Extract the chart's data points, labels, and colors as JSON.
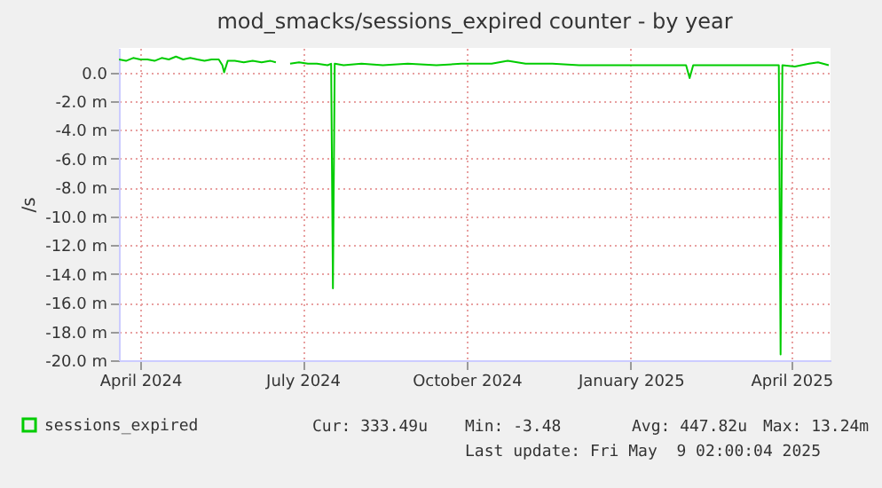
{
  "chart_data": {
    "type": "line",
    "title": "mod_smacks/sessions_expired counter - by year",
    "ylabel": "/s",
    "x": [
      "2024-04-06",
      "2024-04-10",
      "2024-04-14",
      "2024-04-18",
      "2024-04-22",
      "2024-04-26",
      "2024-04-30",
      "2024-05-04",
      "2024-05-08",
      "2024-05-12",
      "2024-05-16",
      "2024-05-20",
      "2024-05-24",
      "2024-05-28",
      "2024-06-01",
      "2024-06-03",
      "2024-06-04",
      "2024-06-06",
      "2024-06-10",
      "2024-06-15",
      "2024-06-20",
      "2024-06-25",
      "2024-06-30",
      "2024-07-03",
      "2024-07-06",
      "2024-07-11",
      "2024-07-16",
      "2024-07-21",
      "2024-07-26",
      "2024-08-01",
      "2024-08-03",
      "2024-08-04",
      "2024-08-05",
      "2024-08-10",
      "2024-08-20",
      "2024-09-01",
      "2024-09-15",
      "2024-10-01",
      "2024-10-15",
      "2024-11-01",
      "2024-11-10",
      "2024-11-20",
      "2024-12-05",
      "2024-12-20",
      "2025-01-05",
      "2025-01-20",
      "2025-02-05",
      "2025-02-18",
      "2025-02-20",
      "2025-02-22",
      "2025-03-10",
      "2025-03-25",
      "2025-04-08",
      "2025-04-11",
      "2025-04-12",
      "2025-04-13",
      "2025-04-20",
      "2025-04-28",
      "2025-05-03",
      "2025-05-09"
    ],
    "series": [
      {
        "name": "sessions_expired",
        "color": "#00cc00",
        "values": [
          0.9,
          0.8,
          1.0,
          0.9,
          0.9,
          0.8,
          1.0,
          0.9,
          1.1,
          0.9,
          1.0,
          0.9,
          0.8,
          0.9,
          0.9,
          0.5,
          0.0,
          0.8,
          0.8,
          0.7,
          0.8,
          0.7,
          0.8,
          0.7,
          null,
          0.6,
          0.7,
          0.6,
          0.6,
          0.5,
          0.6,
          -15.0,
          0.6,
          0.5,
          0.6,
          0.5,
          0.6,
          0.5,
          0.6,
          0.6,
          0.8,
          0.6,
          0.6,
          0.5,
          0.5,
          0.5,
          0.5,
          0.5,
          -0.4,
          0.5,
          0.5,
          0.5,
          0.5,
          0.5,
          -19.6,
          0.5,
          0.4,
          0.6,
          0.7,
          0.5
        ]
      }
    ],
    "xlim": [
      "2024-04-06",
      "2025-05-10"
    ],
    "xticks": [
      {
        "value": "2024-04-18",
        "label": "April 2024"
      },
      {
        "value": "2024-07-18",
        "label": "July 2024"
      },
      {
        "value": "2024-10-18",
        "label": "October 2024"
      },
      {
        "value": "2025-01-18",
        "label": "January 2025"
      },
      {
        "value": "2025-04-18",
        "label": "April 2025"
      }
    ],
    "ylim": [
      -20,
      1.7
    ],
    "yticks": [
      {
        "value": 0,
        "label": "0.0"
      },
      {
        "value": -2,
        "label": "-2.0 m"
      },
      {
        "value": -4,
        "label": "-4.0 m"
      },
      {
        "value": -6,
        "label": "-6.0 m"
      },
      {
        "value": -8,
        "label": "-8.0 m"
      },
      {
        "value": -10,
        "label": "-10.0 m"
      },
      {
        "value": -12,
        "label": "-12.0 m"
      },
      {
        "value": -14,
        "label": "-14.0 m"
      },
      {
        "value": -16,
        "label": "-16.0 m"
      },
      {
        "value": -18,
        "label": "-18.0 m"
      },
      {
        "value": -20,
        "label": "-20.0 m"
      }
    ],
    "grid": true,
    "legend": "bottom left",
    "annotations": [
      "Cur: 333.49u",
      "Min: -3.48",
      "Avg: 447.82u",
      "Max: 13.24m",
      "Last update: Fri May  9 02:00:04 2025"
    ]
  }
}
